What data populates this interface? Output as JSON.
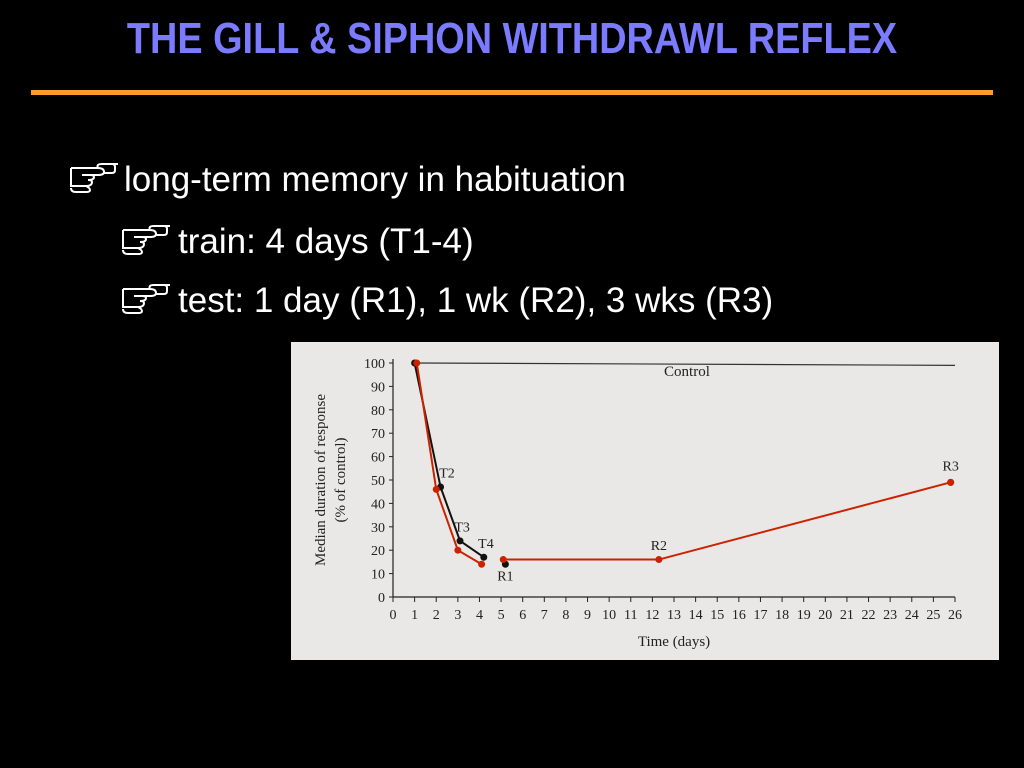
{
  "slide": {
    "title": "THE GILL & SIPHON WITHDRAWL REFLEX",
    "bullets": [
      {
        "text": "long-term memory in habituation",
        "level": 1
      },
      {
        "text": "train: 4 days (T1-4)",
        "level": 2
      },
      {
        "text": "test: 1 day (R1), 1 wk (R2), 3 wks (R3)",
        "level": 2
      }
    ],
    "bullet_icon": "pointing-hand-icon"
  },
  "colors": {
    "background": "#000000",
    "title": "#7b7bff",
    "rule": "#ff9a33",
    "text": "#ffffff",
    "figure_bg": "#e9e8e6",
    "series_black": "#111111",
    "series_red": "#cc2200"
  },
  "chart_data": {
    "type": "line",
    "title": "",
    "xlabel": "Time (days)",
    "ylabel": "Median duration of response",
    "ylabel_sub": "(% of control)",
    "xlim": [
      0,
      26
    ],
    "ylim": [
      0,
      100
    ],
    "x_ticks": [
      0,
      1,
      2,
      3,
      4,
      5,
      6,
      7,
      8,
      9,
      10,
      11,
      12,
      13,
      14,
      15,
      16,
      17,
      18,
      19,
      20,
      21,
      22,
      23,
      24,
      25,
      26
    ],
    "y_ticks": [
      0,
      10,
      20,
      30,
      40,
      50,
      60,
      70,
      80,
      90,
      100
    ],
    "control_label": "Control",
    "control_line": {
      "x": [
        1,
        26
      ],
      "y": [
        100,
        99
      ]
    },
    "series": [
      {
        "color": "black",
        "segments": [
          {
            "x": [
              1,
              2.2,
              3.1,
              4.2
            ],
            "y": [
              100,
              47,
              24,
              17
            ]
          },
          {
            "x": [
              5.2
            ],
            "y": [
              14
            ]
          },
          {
            "x": [
              25.8
            ],
            "y": [
              49
            ]
          }
        ]
      },
      {
        "color": "red",
        "segments": [
          {
            "x": [
              1.1,
              2,
              3,
              4.1
            ],
            "y": [
              100,
              46,
              20,
              14
            ]
          },
          {
            "x": [
              5.1,
              12.3,
              25.8
            ],
            "y": [
              16,
              16,
              49
            ]
          }
        ]
      }
    ],
    "annotations": [
      {
        "text": "T2",
        "x": 2.5,
        "y": 51
      },
      {
        "text": "T3",
        "x": 3.2,
        "y": 28
      },
      {
        "text": "T4",
        "x": 4.3,
        "y": 21
      },
      {
        "text": "R1",
        "x": 5.2,
        "y": 7
      },
      {
        "text": "R2",
        "x": 12.3,
        "y": 20
      },
      {
        "text": "R3",
        "x": 25.8,
        "y": 54
      }
    ]
  }
}
